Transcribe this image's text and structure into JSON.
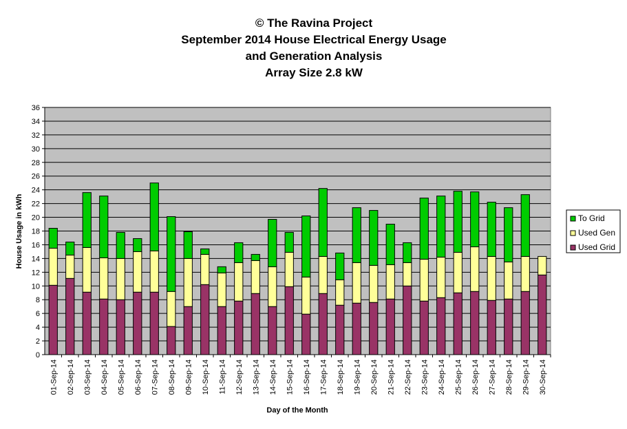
{
  "colors": {
    "plot_background": "#c0c0c0",
    "gridline": "#000000",
    "used_grid": "#993366",
    "used_gen": "#ffff99",
    "to_grid": "#00cc00"
  },
  "chart_data": {
    "type": "bar",
    "stacked": true,
    "title_lines": [
      "© The Ravina Project",
      "September 2014 House Electrical Energy Usage",
      "and Generation Analysis",
      "Array Size 2.8 kW"
    ],
    "xlabel": "Day of the Month",
    "ylabel": "House Usage in kWh",
    "ylim": [
      0,
      36
    ],
    "yticks": [
      0,
      2,
      4,
      6,
      8,
      10,
      12,
      14,
      16,
      18,
      20,
      22,
      24,
      26,
      28,
      30,
      32,
      34,
      36
    ],
    "grid": true,
    "legend_position": "right",
    "categories": [
      "01-Sep-14",
      "02-Sep-14",
      "03-Sep-14",
      "04-Sep-14",
      "05-Sep-14",
      "06-Sep-14",
      "07-Sep-14",
      "08-Sep-14",
      "09-Sep-14",
      "10-Sep-14",
      "11-Sep-14",
      "12-Sep-14",
      "13-Sep-14",
      "14-Sep-14",
      "15-Sep-14",
      "16-Sep-14",
      "17-Sep-14",
      "18-Sep-14",
      "19-Sep-14",
      "20-Sep-14",
      "21-Sep-14",
      "22-Sep-14",
      "23-Sep-14",
      "24-Sep-14",
      "25-Sep-14",
      "26-Sep-14",
      "27-Sep-14",
      "28-Sep-14",
      "29-Sep-14",
      "30-Sep-14"
    ],
    "series": [
      {
        "name": "Used Grid",
        "color": "#993366",
        "values": [
          10.1,
          11.1,
          9.1,
          8.1,
          8.0,
          9.1,
          9.1,
          4.1,
          7.0,
          10.2,
          7.0,
          7.8,
          8.9,
          7.0,
          9.9,
          5.9,
          8.9,
          7.2,
          7.5,
          7.6,
          8.1,
          10.0,
          7.8,
          8.3,
          9.0,
          9.2,
          7.9,
          8.1,
          9.2,
          11.6
        ]
      },
      {
        "name": "Used Gen",
        "color": "#ffff99",
        "values": [
          5.4,
          3.4,
          6.5,
          6.0,
          6.0,
          5.9,
          6.0,
          5.1,
          7.0,
          4.4,
          4.9,
          5.6,
          4.8,
          5.8,
          5.0,
          5.4,
          5.4,
          3.7,
          5.9,
          5.4,
          5.0,
          3.4,
          6.1,
          5.9,
          5.9,
          6.5,
          6.4,
          5.4,
          5.1,
          2.7
        ]
      },
      {
        "name": "To Grid",
        "color": "#00cc00",
        "values": [
          2.9,
          1.9,
          8.0,
          9.0,
          3.8,
          1.9,
          9.9,
          10.9,
          3.9,
          0.8,
          0.9,
          2.9,
          0.9,
          6.9,
          2.9,
          8.9,
          9.9,
          3.9,
          8.0,
          8.0,
          5.9,
          2.9,
          8.9,
          8.9,
          8.9,
          8.0,
          7.9,
          7.9,
          9.0,
          0.0
        ]
      }
    ],
    "legend_order": [
      "To Grid",
      "Used Gen",
      "Used Grid"
    ]
  }
}
